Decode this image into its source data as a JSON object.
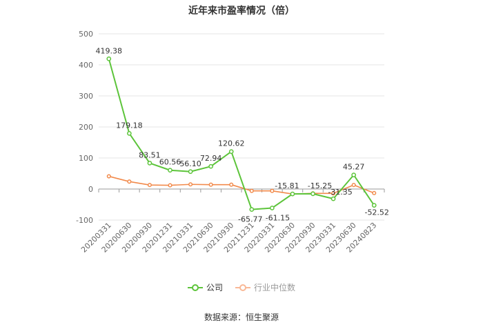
{
  "chart_data": {
    "type": "line",
    "title": "近年来市盈率情况（倍）",
    "categories": [
      "20200331",
      "20200630",
      "20200930",
      "20201231",
      "20210331",
      "20210630",
      "20210930",
      "20211231",
      "20220331",
      "20220630",
      "20220930",
      "20230331",
      "20230630",
      "20240823"
    ],
    "ylim": [
      -100,
      500
    ],
    "yticks": [
      500,
      400,
      300,
      200,
      100,
      0,
      -100
    ],
    "grid": true,
    "legend_position": "bottom",
    "series": [
      {
        "name": "公司",
        "color": "#5cc43a",
        "values": [
          419.38,
          179.18,
          83.51,
          60.56,
          56.1,
          72.94,
          120.62,
          -65.77,
          -61.15,
          -15.81,
          -15.25,
          -31.35,
          45.27,
          -52.52
        ],
        "labels": [
          "419.38",
          "179.18",
          "83.51",
          "60.56",
          "56.10",
          "72.94",
          "120.62",
          "-65.77",
          "-61.15",
          "-15.81",
          "-15.25",
          "-31.35",
          "45.27",
          "-52.52"
        ]
      },
      {
        "name": "行业中位数",
        "color": "#f28a4b",
        "values": [
          41,
          24,
          13,
          12,
          15,
          14,
          14,
          -6,
          -6,
          -16,
          -14,
          -14,
          13,
          -13
        ]
      }
    ]
  },
  "source": "数据来源：恒生聚源"
}
